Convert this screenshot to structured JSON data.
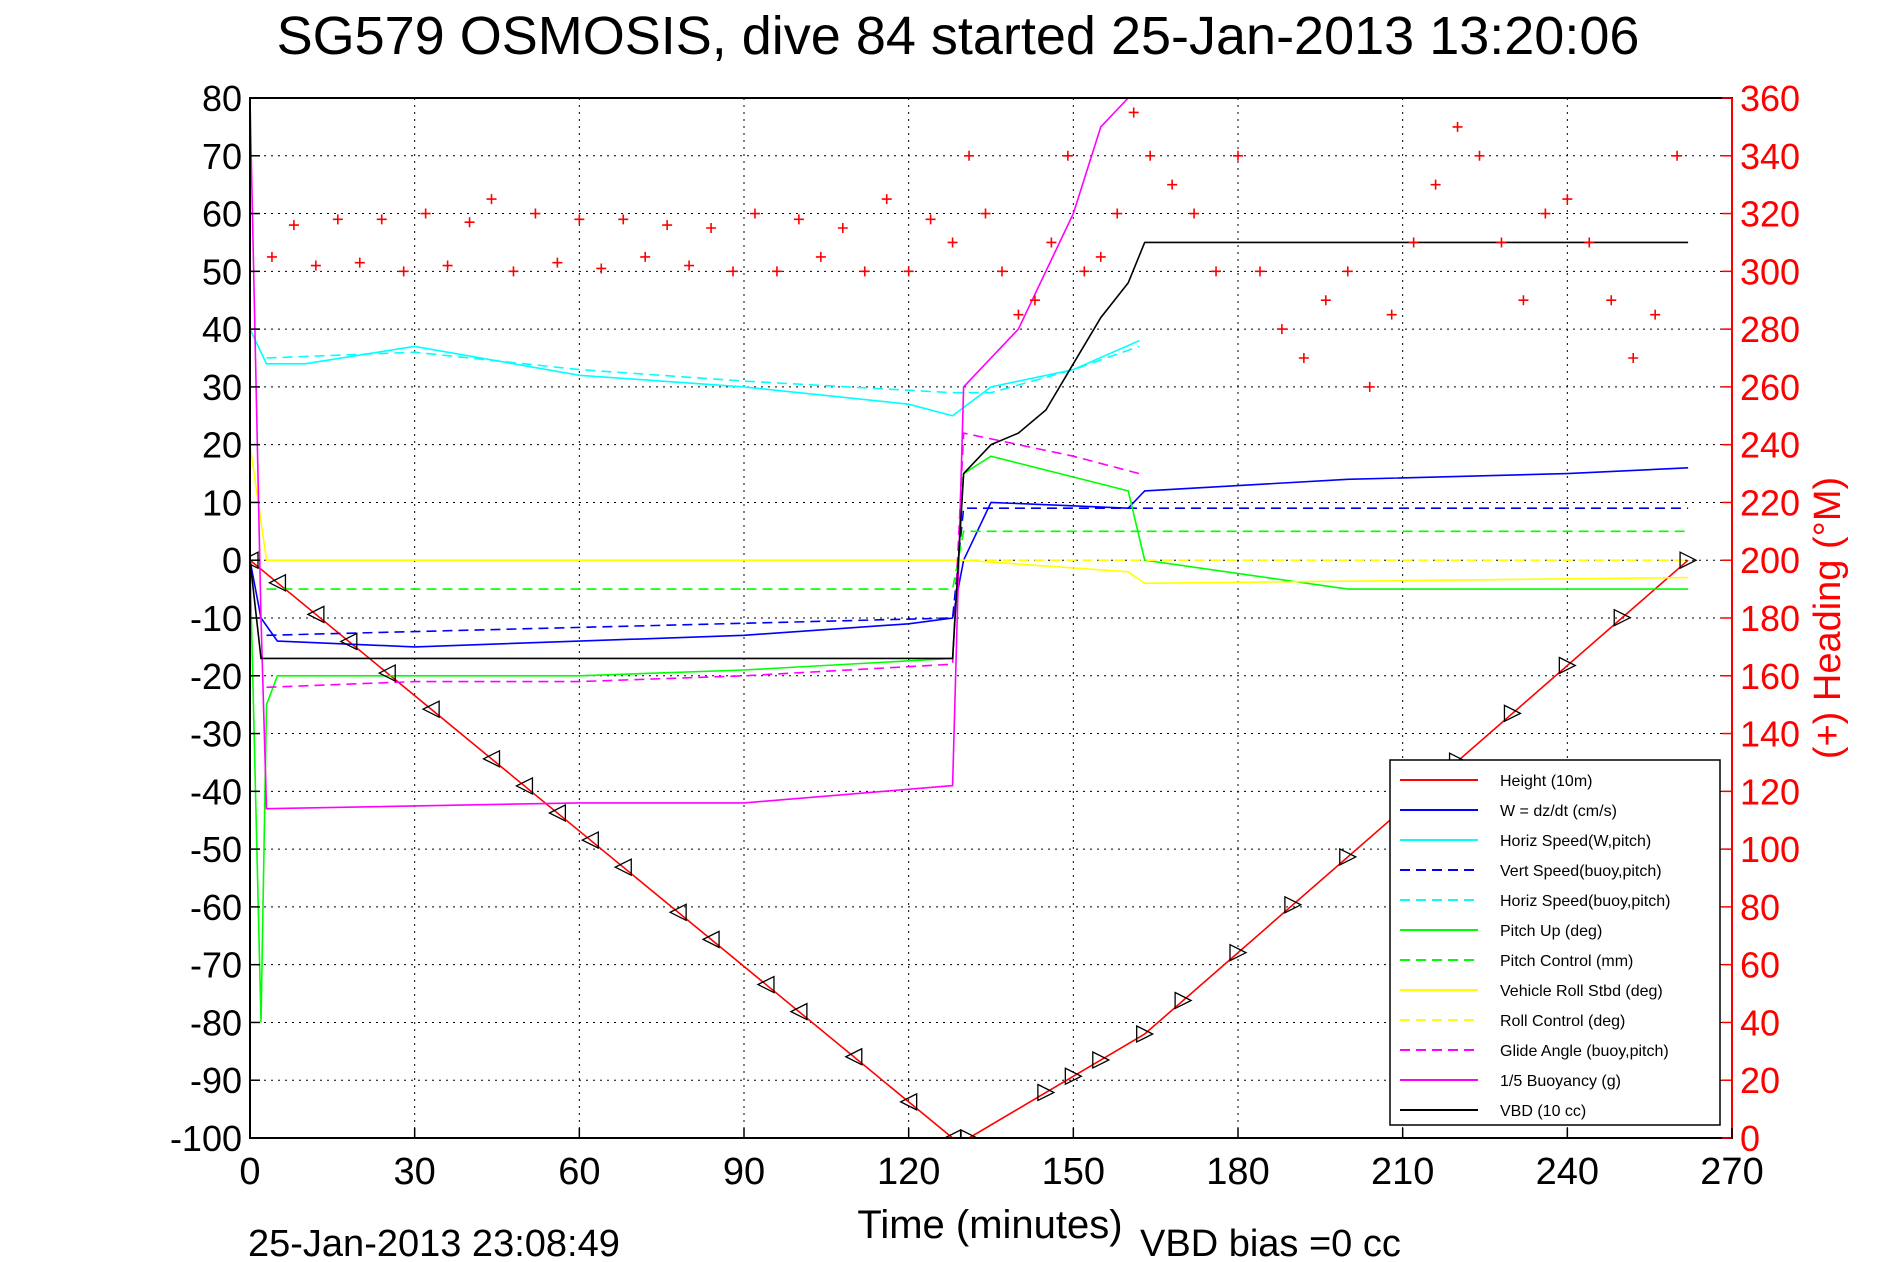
{
  "chart_data": {
    "type": "line",
    "title": "SG579 OSMOSIS, dive 84 started 25-Jan-2013 13:20:06",
    "xlabel": "Time (minutes)",
    "ylabel_right": "(+) Heading (°M)",
    "footer_left": "25-Jan-2013 23:08:49",
    "footer_right": "VBD bias =0 cc",
    "xlim": [
      0,
      270
    ],
    "ylim_left": [
      -100,
      80
    ],
    "ylim_right": [
      0,
      360
    ],
    "x_ticks": [
      "0",
      "30",
      "60",
      "90",
      "120",
      "150",
      "180",
      "210",
      "240",
      "270"
    ],
    "y_ticks_left": [
      "80",
      "70",
      "60",
      "50",
      "40",
      "30",
      "20",
      "10",
      "0",
      "-10",
      "-20",
      "-30",
      "-40",
      "-50",
      "-60",
      "-70",
      "-80",
      "-90",
      "-100"
    ],
    "y_ticks_right": [
      "360",
      "340",
      "320",
      "300",
      "280",
      "260",
      "240",
      "220",
      "200",
      "180",
      "160",
      "140",
      "120",
      "100",
      "80",
      "60",
      "40",
      "20",
      "0"
    ],
    "grid": true,
    "legend_position": "bottom-right",
    "legend": [
      {
        "label": "Height (10m)",
        "color": "#ff0000",
        "dash": "solid"
      },
      {
        "label": "W  = dz/dt (cm/s)",
        "color": "#0000ff",
        "dash": "solid"
      },
      {
        "label": "Horiz Speed(W,pitch)",
        "color": "#00ffff",
        "dash": "solid"
      },
      {
        "label": "Vert Speed(buoy,pitch)",
        "color": "#0000ff",
        "dash": "dashed"
      },
      {
        "label": "Horiz Speed(buoy,pitch)",
        "color": "#00ffff",
        "dash": "dashed"
      },
      {
        "label": "Pitch Up (deg)",
        "color": "#00ff00",
        "dash": "solid"
      },
      {
        "label": "Pitch Control (mm)",
        "color": "#00ff00",
        "dash": "dashed"
      },
      {
        "label": "Vehicle Roll Stbd (deg)",
        "color": "#ffff00",
        "dash": "solid"
      },
      {
        "label": "Roll Control (deg)",
        "color": "#ffff00",
        "dash": "dashed"
      },
      {
        "label": "Glide Angle (buoy,pitch)",
        "color": "#ff00ff",
        "dash": "dashed"
      },
      {
        "label": "1/5 Buoyancy (g)",
        "color": "#ff00ff",
        "dash": "solid"
      },
      {
        "label": "VBD (10 cc)",
        "color": "#000000",
        "dash": "solid"
      }
    ],
    "series": [
      {
        "name": "Height (10m)",
        "color": "#ff0000",
        "dash": "solid",
        "x": [
          0,
          128,
          131,
          163,
          262
        ],
        "y": [
          0,
          -100,
          -100,
          -82,
          0
        ]
      },
      {
        "name": "W  = dz/dt (cm/s)",
        "color": "#0000ff",
        "dash": "solid",
        "x": [
          0,
          2,
          5,
          30,
          60,
          90,
          120,
          128,
          130,
          135,
          160,
          163,
          200,
          240,
          262
        ],
        "y": [
          0,
          -10,
          -14,
          -15,
          -14,
          -13,
          -11,
          -10,
          0,
          10,
          9,
          12,
          14,
          15,
          16
        ]
      },
      {
        "name": "Horiz Speed(W,pitch)",
        "color": "#00ffff",
        "dash": "solid",
        "x": [
          0,
          3,
          10,
          30,
          60,
          90,
          120,
          128,
          135,
          150,
          162
        ],
        "y": [
          40,
          34,
          34,
          37,
          32,
          30,
          27,
          25,
          30,
          33,
          38
        ]
      },
      {
        "name": "Vert Speed(buoy,pitch)",
        "color": "#0000ff",
        "dash": "dashed",
        "x": [
          3,
          128,
          130,
          262
        ],
        "y": [
          -13,
          -10,
          9,
          9
        ]
      },
      {
        "name": "Horiz Speed(buoy,pitch)",
        "color": "#00ffff",
        "dash": "dashed",
        "x": [
          3,
          30,
          60,
          90,
          128,
          135,
          150,
          162
        ],
        "y": [
          35,
          36,
          33,
          31,
          29,
          29,
          33,
          37
        ]
      },
      {
        "name": "Pitch Up (deg)",
        "color": "#00ff00",
        "dash": "solid",
        "x": [
          0,
          2,
          3,
          5,
          30,
          60,
          90,
          128,
          130,
          135,
          160,
          163,
          200,
          262
        ],
        "y": [
          0,
          -80,
          -25,
          -20,
          -20,
          -20,
          -19,
          -17,
          15,
          18,
          12,
          0,
          -5,
          -5
        ]
      },
      {
        "name": "Pitch Control (mm)",
        "color": "#00ff00",
        "dash": "dashed",
        "x": [
          3,
          128,
          130,
          262
        ],
        "y": [
          -5,
          -5,
          5,
          5
        ]
      },
      {
        "name": "Vehicle Roll Stbd (deg)",
        "color": "#ffff00",
        "dash": "solid",
        "x": [
          0,
          3,
          30,
          60,
          90,
          128,
          130,
          160,
          163,
          262
        ],
        "y": [
          20,
          0,
          0,
          0,
          0,
          0,
          0,
          -2,
          -4,
          -3
        ]
      },
      {
        "name": "Roll Control (deg)",
        "color": "#ffff00",
        "dash": "dashed",
        "x": [
          3,
          128,
          130,
          262
        ],
        "y": [
          0,
          0,
          0,
          0
        ]
      },
      {
        "name": "Glide Angle (buoy,pitch)",
        "color": "#ff00ff",
        "dash": "dashed",
        "x": [
          3,
          30,
          60,
          90,
          128,
          130,
          150,
          162
        ],
        "y": [
          -22,
          -21,
          -21,
          -20,
          -18,
          22,
          18,
          15
        ]
      },
      {
        "name": "1/5 Buoyancy (g)",
        "color": "#ff00ff",
        "dash": "solid",
        "x": [
          0,
          2,
          3,
          60,
          90,
          128,
          130,
          140,
          150,
          155,
          160,
          262
        ],
        "y": [
          80,
          -10,
          -43,
          -42,
          -42,
          -39,
          30,
          40,
          60,
          75,
          80,
          80
        ]
      },
      {
        "name": "VBD (10 cc)",
        "color": "#000000",
        "dash": "solid",
        "x": [
          0,
          2,
          3,
          128,
          130,
          135,
          140,
          145,
          150,
          155,
          160,
          163,
          262
        ],
        "y": [
          0,
          -17,
          -17,
          -17,
          15,
          20,
          22,
          26,
          34,
          42,
          48,
          55,
          55
        ]
      }
    ],
    "heading_points": {
      "name": "(+) Heading",
      "color": "#ff0000",
      "axis": "right",
      "x": [
        0,
        4,
        8,
        12,
        16,
        20,
        24,
        28,
        32,
        36,
        40,
        44,
        48,
        52,
        56,
        60,
        64,
        68,
        72,
        76,
        80,
        84,
        88,
        92,
        96,
        100,
        104,
        108,
        112,
        116,
        120,
        124,
        128,
        131,
        134,
        137,
        140,
        143,
        146,
        149,
        152,
        155,
        158,
        161,
        164,
        168,
        172,
        176,
        180,
        184,
        188,
        192,
        196,
        200,
        204,
        208,
        212,
        216,
        220,
        224,
        228,
        232,
        236,
        240,
        244,
        248,
        252,
        256,
        260
      ],
      "y": [
        300,
        305,
        316,
        302,
        318,
        303,
        318,
        300,
        320,
        302,
        317,
        325,
        300,
        320,
        303,
        318,
        301,
        318,
        305,
        316,
        302,
        315,
        300,
        320,
        300,
        318,
        305,
        315,
        300,
        325,
        300,
        318,
        310,
        340,
        320,
        300,
        285,
        290,
        310,
        340,
        300,
        305,
        320,
        355,
        340,
        330,
        320,
        300,
        340,
        300,
        280,
        270,
        290,
        300,
        260,
        285,
        310,
        330,
        350,
        340,
        310,
        290,
        320,
        325,
        310,
        290,
        270,
        285,
        340
      ]
    }
  }
}
